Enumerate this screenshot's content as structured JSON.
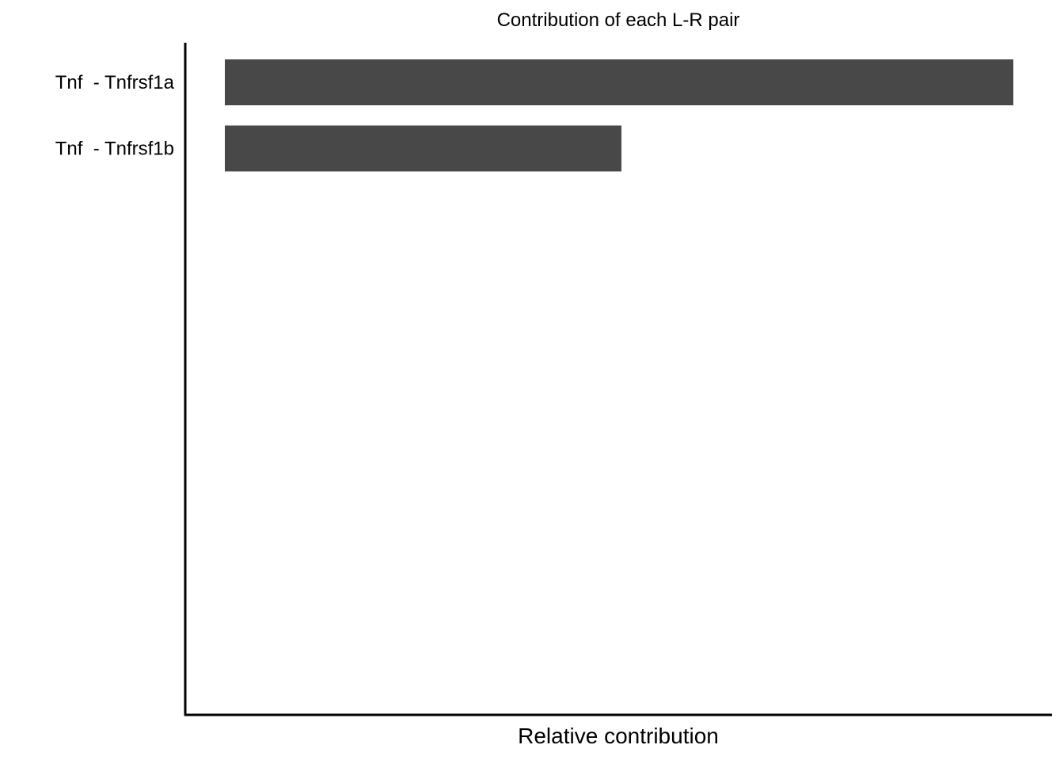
{
  "chart_data": {
    "type": "bar",
    "orientation": "horizontal",
    "title": "Contribution of each L-R pair",
    "xlabel": "Relative contribution",
    "ylabel": "",
    "categories": [
      "Tnf  - Tnfrsf1a",
      "Tnf  - Tnfrsf1b"
    ],
    "values": [
      1.0,
      0.503
    ],
    "xlim": [
      0,
      1.05
    ],
    "bar_color": "#484848",
    "grid": false,
    "legend": "none"
  }
}
